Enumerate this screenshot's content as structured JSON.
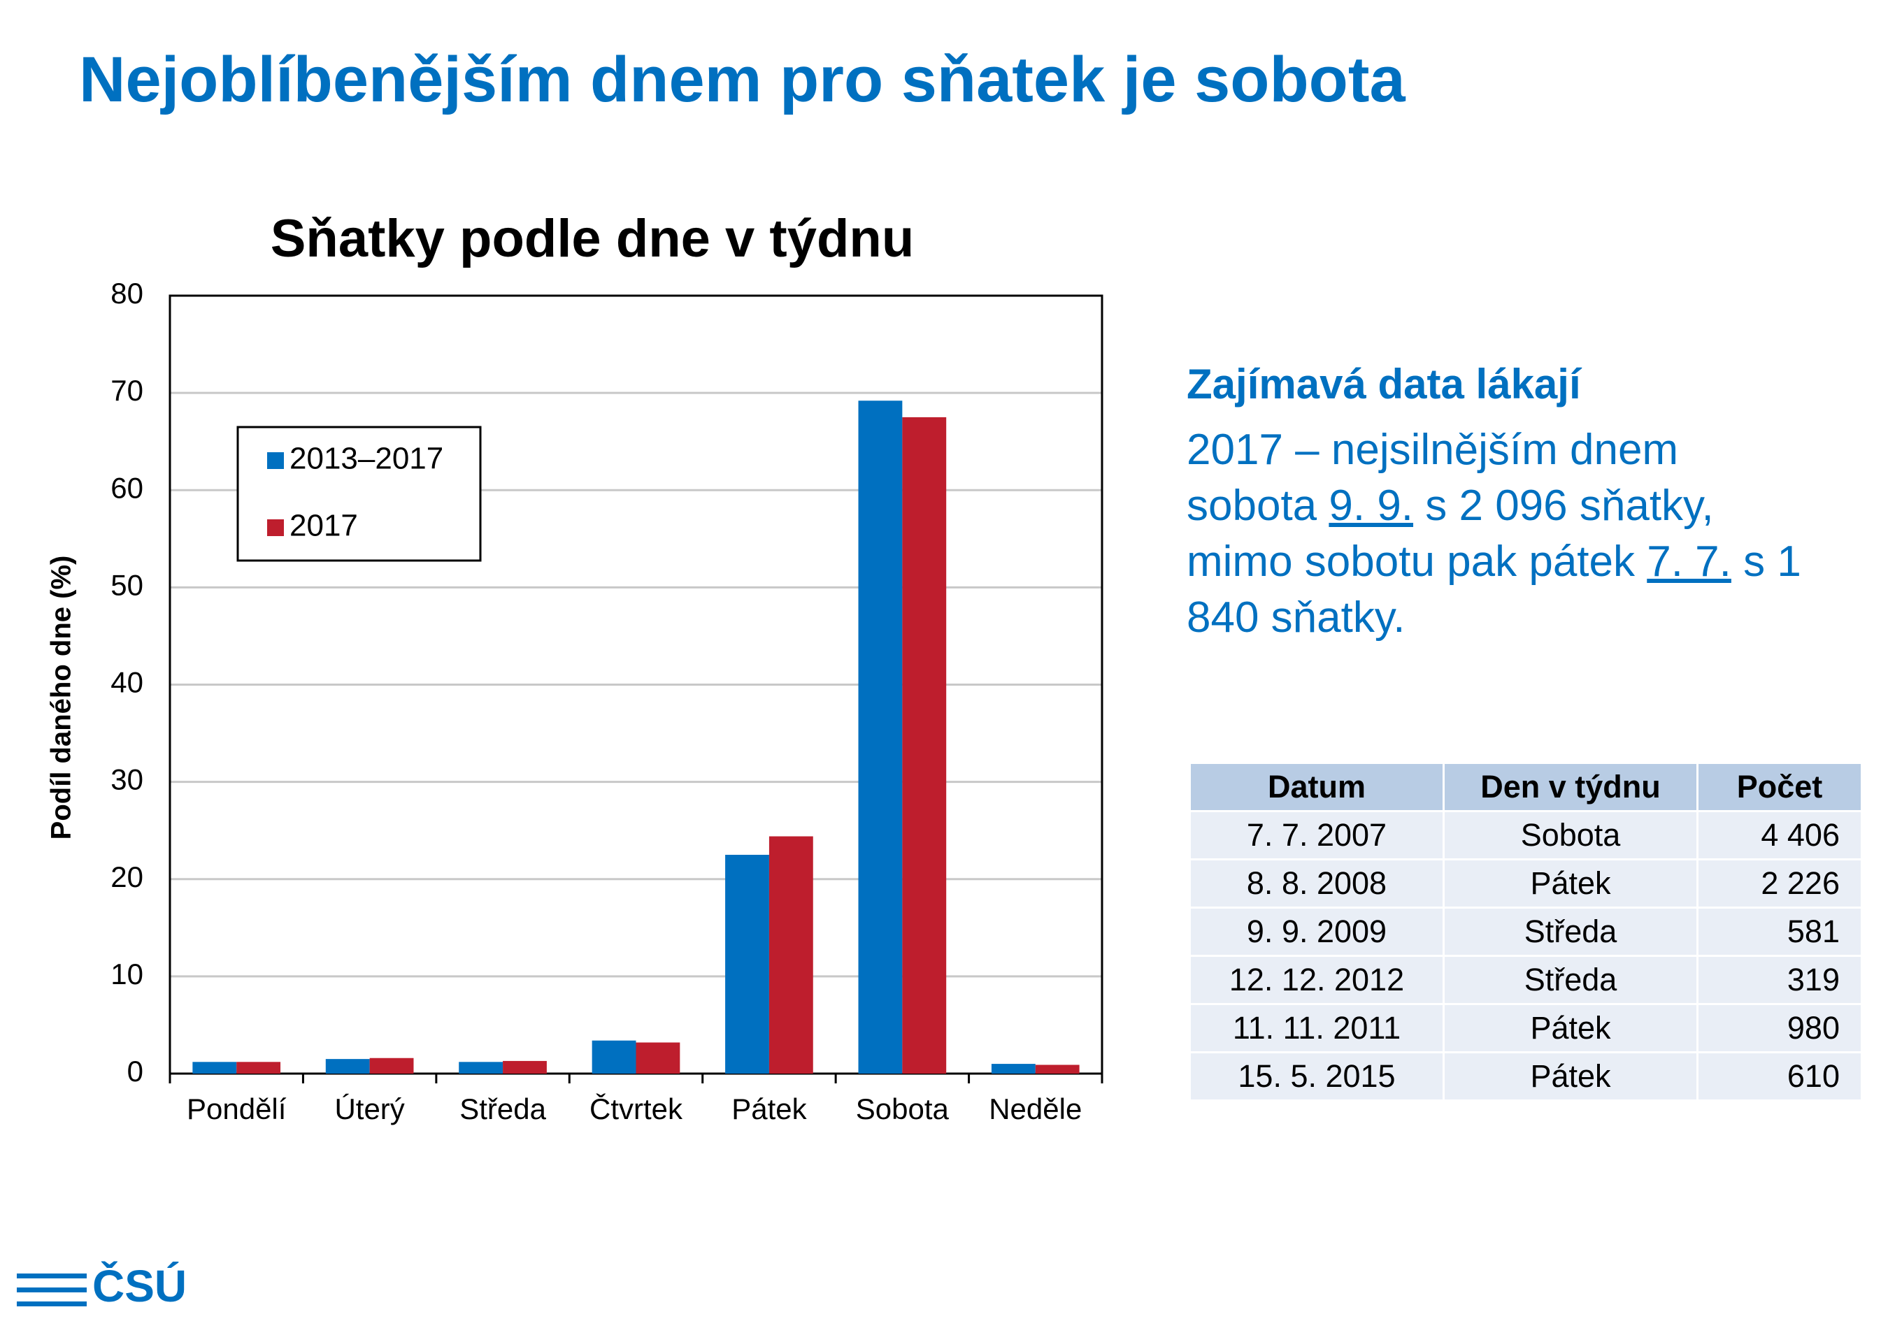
{
  "slide_title": "Nejoblíbenějším dnem pro sňatek je sobota",
  "chart_data": {
    "type": "bar",
    "title": "Sňatky podle dne v týdnu",
    "y_label": "Podíl daného dne (%)",
    "categories": [
      "Pondělí",
      "Úterý",
      "Středa",
      "Čtvrtek",
      "Pátek",
      "Sobota",
      "Neděle"
    ],
    "series": [
      {
        "name": "2013–2017",
        "color": "#0070c0",
        "values": [
          1.2,
          1.5,
          1.2,
          3.4,
          22.5,
          69.2,
          1.0
        ]
      },
      {
        "name": "2017",
        "color": "#be1e2d",
        "values": [
          1.2,
          1.6,
          1.3,
          3.2,
          24.4,
          67.5,
          0.9
        ]
      }
    ],
    "ylim": [
      0,
      80
    ],
    "yticks": [
      0,
      10,
      20,
      30,
      40,
      50,
      60,
      70,
      80
    ],
    "grid": true,
    "legend": "upper-left"
  },
  "sidebar": {
    "heading": "Zajímavá data lákají",
    "paragraph": [
      "2017 – nejsilnějším dnem sobota ",
      "9. 9.",
      " s 2 096 sňatky, mimo sobotu pak pátek ",
      "7. 7.",
      " s 1 840 sňatky."
    ]
  },
  "table": {
    "header": [
      "Datum",
      "Den v týdnu",
      "Počet"
    ],
    "rows": [
      [
        "7. 7. 2007",
        "Sobota",
        "4 406"
      ],
      [
        "8. 8. 2008",
        "Pátek",
        "2 226"
      ],
      [
        "9. 9. 2009",
        "Středa",
        "581"
      ],
      [
        "12. 12. 2012",
        "Středa",
        "319"
      ],
      [
        "11. 11. 2011",
        "Pátek",
        "980"
      ],
      [
        "15. 5. 2015",
        "Pátek",
        "610"
      ]
    ]
  },
  "logo": "ČSÚ"
}
